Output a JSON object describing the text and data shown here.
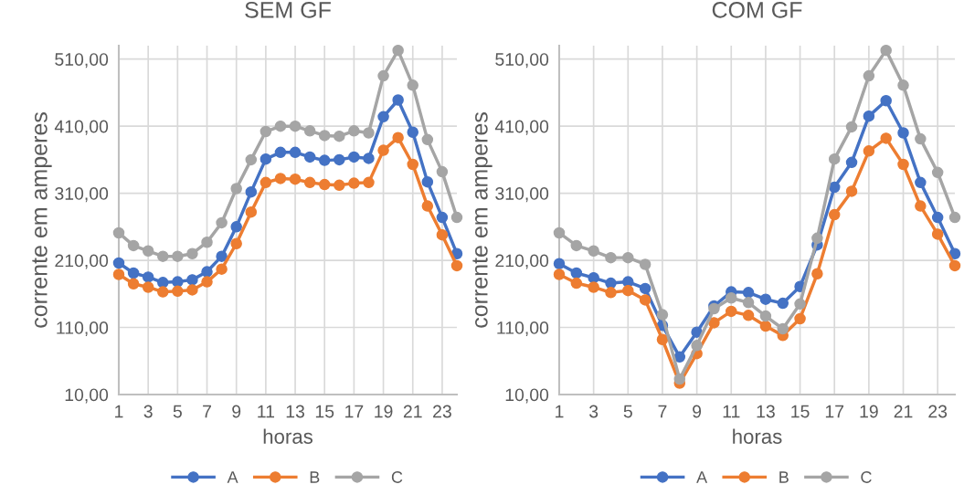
{
  "chart_data": [
    {
      "type": "line",
      "title": "SEM GF",
      "xlabel": "horas",
      "ylabel": "corrente em amperes",
      "x": [
        1,
        2,
        3,
        4,
        5,
        6,
        7,
        8,
        9,
        10,
        11,
        12,
        13,
        14,
        15,
        16,
        17,
        18,
        19,
        20,
        21,
        22,
        23,
        24
      ],
      "series": [
        {
          "name": "A",
          "color": "#4472c4",
          "values": [
            206,
            191,
            185,
            177,
            178,
            181,
            193,
            216,
            260,
            312,
            361,
            371,
            371,
            364,
            359,
            360,
            364,
            362,
            424,
            449,
            401,
            327,
            274,
            220
          ]
        },
        {
          "name": "B",
          "color": "#ed7d31",
          "values": [
            189,
            175,
            170,
            163,
            164,
            166,
            178,
            197,
            235,
            282,
            326,
            332,
            331,
            326,
            323,
            322,
            325,
            326,
            374,
            393,
            353,
            291,
            248,
            202
          ]
        },
        {
          "name": "C",
          "color": "#a5a5a5",
          "values": [
            251,
            232,
            224,
            216,
            216,
            220,
            237,
            266,
            317,
            360,
            402,
            410,
            410,
            403,
            396,
            395,
            403,
            400,
            485,
            523,
            471,
            390,
            342,
            274
          ]
        }
      ],
      "xlim": [
        1,
        24
      ],
      "xticks": [
        1,
        3,
        5,
        7,
        9,
        11,
        13,
        15,
        17,
        19,
        21,
        23
      ],
      "ylim": [
        10,
        530
      ],
      "yticks": [
        {
          "value": 10,
          "label": "10,00"
        },
        {
          "value": 110,
          "label": "110,00"
        },
        {
          "value": 210,
          "label": "210,00"
        },
        {
          "value": 310,
          "label": "310,00"
        },
        {
          "value": 410,
          "label": "410,00"
        },
        {
          "value": 510,
          "label": "510,00"
        }
      ],
      "grid": true,
      "legend": "bottom",
      "marker": "circle",
      "line_style": "solid"
    },
    {
      "type": "line",
      "title": "COM GF",
      "xlabel": "horas",
      "ylabel": "corrente em amperes",
      "x": [
        1,
        2,
        3,
        4,
        5,
        6,
        7,
        8,
        9,
        10,
        11,
        12,
        13,
        14,
        15,
        16,
        17,
        18,
        19,
        20,
        21,
        22,
        23,
        24
      ],
      "series": [
        {
          "name": "A",
          "color": "#4472c4",
          "values": [
            205,
            191,
            184,
            176,
            178,
            168,
            113,
            66,
            103,
            142,
            163,
            162,
            152,
            146,
            171,
            233,
            319,
            356,
            425,
            448,
            400,
            326,
            274,
            220
          ]
        },
        {
          "name": "B",
          "color": "#ed7d31",
          "values": [
            189,
            176,
            170,
            162,
            165,
            151,
            92,
            27,
            71,
            117,
            134,
            128,
            112,
            98,
            123,
            190,
            278,
            313,
            373,
            392,
            353,
            291,
            249,
            202
          ]
        },
        {
          "name": "C",
          "color": "#a5a5a5",
          "values": [
            251,
            232,
            224,
            214,
            214,
            204,
            129,
            33,
            83,
            138,
            154,
            147,
            127,
            108,
            145,
            243,
            361,
            409,
            485,
            523,
            471,
            391,
            341,
            274
          ]
        }
      ],
      "xlim": [
        1,
        24
      ],
      "xticks": [
        1,
        3,
        5,
        7,
        9,
        11,
        13,
        15,
        17,
        19,
        21,
        23
      ],
      "ylim": [
        10,
        530
      ],
      "yticks": [
        {
          "value": 10,
          "label": "10,00"
        },
        {
          "value": 110,
          "label": "110,00"
        },
        {
          "value": 210,
          "label": "210,00"
        },
        {
          "value": 310,
          "label": "310,00"
        },
        {
          "value": 410,
          "label": "410,00"
        },
        {
          "value": 510,
          "label": "510,00"
        }
      ],
      "grid": true,
      "legend": "bottom",
      "marker": "circle",
      "line_style": "solid"
    }
  ]
}
